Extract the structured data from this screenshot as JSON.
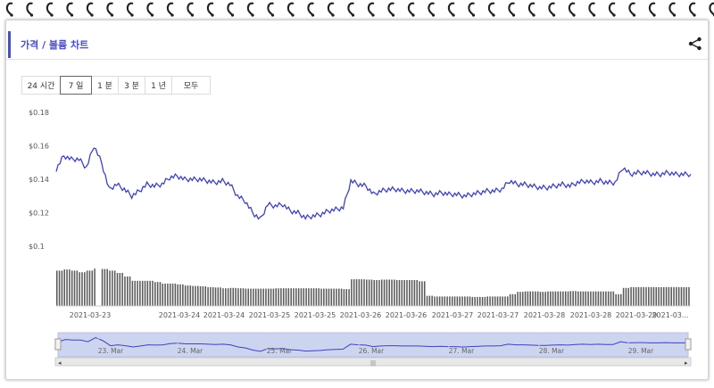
{
  "header": {
    "title": "가격 / 볼륨 차트",
    "share_icon": "share-icon"
  },
  "tabs": [
    {
      "label": "24 시간",
      "active": false
    },
    {
      "label": "7 일",
      "active": true
    },
    {
      "label": "1 분",
      "active": false
    },
    {
      "label": "3 분",
      "active": false
    },
    {
      "label": "1 년",
      "active": false
    },
    {
      "label": "모두",
      "active": false
    }
  ],
  "colors": {
    "accent": "#4a4ec2",
    "line": "#3f43b8",
    "volume": "#5a5a5a",
    "navigator_fill": "#cdd4f0"
  },
  "chart_data": {
    "type": "line",
    "series": [
      {
        "x": [
          "2021-03-22 18:00",
          "2021-03-22 20:00",
          "2021-03-22 22:00",
          "2021-03-23 00:00",
          "2021-03-23 02:00",
          "2021-03-23 04:00",
          "2021-03-23 06:00",
          "2021-03-23 08:00",
          "2021-03-23 10:00",
          "2021-03-23 12:00",
          "2021-03-23 14:00",
          "2021-03-23 16:00",
          "2021-03-23 18:00",
          "2021-03-23 20:00",
          "2021-03-23 22:00",
          "2021-03-24 00:00",
          "2021-03-24 02:00",
          "2021-03-24 04:00",
          "2021-03-24 06:00",
          "2021-03-24 08:00",
          "2021-03-24 10:00",
          "2021-03-24 12:00",
          "2021-03-24 14:00",
          "2021-03-24 16:00",
          "2021-03-24 18:00",
          "2021-03-24 20:00",
          "2021-03-24 22:00",
          "2021-03-25 00:00",
          "2021-03-25 02:00",
          "2021-03-25 04:00",
          "2021-03-25 06:00",
          "2021-03-25 08:00",
          "2021-03-25 10:00",
          "2021-03-25 12:00",
          "2021-03-25 14:00",
          "2021-03-25 16:00",
          "2021-03-25 18:00",
          "2021-03-25 20:00",
          "2021-03-25 22:00",
          "2021-03-26 00:00",
          "2021-03-26 02:00",
          "2021-03-26 04:00",
          "2021-03-26 06:00",
          "2021-03-26 08:00",
          "2021-03-26 10:00",
          "2021-03-26 12:00",
          "2021-03-26 14:00",
          "2021-03-26 16:00",
          "2021-03-26 18:00",
          "2021-03-26 20:00",
          "2021-03-26 22:00",
          "2021-03-27 00:00",
          "2021-03-27 02:00",
          "2021-03-27 04:00",
          "2021-03-27 06:00",
          "2021-03-27 08:00",
          "2021-03-27 10:00",
          "2021-03-27 12:00",
          "2021-03-27 14:00",
          "2021-03-27 16:00",
          "2021-03-27 18:00",
          "2021-03-27 20:00",
          "2021-03-27 22:00",
          "2021-03-28 00:00",
          "2021-03-28 02:00",
          "2021-03-28 04:00",
          "2021-03-28 06:00",
          "2021-03-28 08:00",
          "2021-03-28 10:00",
          "2021-03-28 12:00",
          "2021-03-28 14:00",
          "2021-03-28 16:00",
          "2021-03-28 18:00",
          "2021-03-28 20:00",
          "2021-03-28 22:00",
          "2021-03-29 00:00",
          "2021-03-29 02:00",
          "2021-03-29 04:00",
          "2021-03-29 06:00",
          "2021-03-29 08:00",
          "2021-03-29 10:00",
          "2021-03-29 12:00",
          "2021-03-29 14:00",
          "2021-03-29 16:00",
          "2021-03-29 18:00"
        ],
        "price": [
          0.146,
          0.154,
          0.152,
          0.152,
          0.147,
          0.16,
          0.15,
          0.134,
          0.137,
          0.134,
          0.13,
          0.133,
          0.137,
          0.136,
          0.137,
          0.141,
          0.142,
          0.14,
          0.14,
          0.14,
          0.139,
          0.138,
          0.139,
          0.137,
          0.13,
          0.127,
          0.12,
          0.116,
          0.125,
          0.124,
          0.125,
          0.121,
          0.12,
          0.117,
          0.118,
          0.119,
          0.121,
          0.122,
          0.123,
          0.139,
          0.137,
          0.136,
          0.131,
          0.133,
          0.134,
          0.134,
          0.133,
          0.133,
          0.133,
          0.132,
          0.131,
          0.132,
          0.131,
          0.131,
          0.13,
          0.131,
          0.132,
          0.133,
          0.133,
          0.134,
          0.139,
          0.137,
          0.137,
          0.136,
          0.135,
          0.135,
          0.136,
          0.137,
          0.136,
          0.138,
          0.139,
          0.138,
          0.139,
          0.138,
          0.138,
          0.147,
          0.143,
          0.144,
          0.144,
          0.143,
          0.143,
          0.144,
          0.143,
          0.143,
          0.143
        ],
        "volume": [
          0.9,
          0.93,
          0.9,
          0.86,
          0.9,
          0.95,
          0.94,
          0.9,
          0.84,
          0.75,
          0.64,
          0.64,
          0.64,
          0.61,
          0.57,
          0.57,
          0.55,
          0.52,
          0.51,
          0.5,
          0.48,
          0.47,
          0.45,
          0.46,
          0.45,
          0.44,
          0.44,
          0.44,
          0.44,
          0.45,
          0.45,
          0.45,
          0.45,
          0.45,
          0.45,
          0.44,
          0.44,
          0.44,
          0.43,
          0.68,
          0.68,
          0.67,
          0.66,
          0.67,
          0.67,
          0.66,
          0.66,
          0.66,
          0.63,
          0.26,
          0.24,
          0.24,
          0.24,
          0.24,
          0.24,
          0.23,
          0.23,
          0.24,
          0.24,
          0.24,
          0.3,
          0.36,
          0.37,
          0.37,
          0.36,
          0.37,
          0.37,
          0.37,
          0.38,
          0.37,
          0.37,
          0.37,
          0.37,
          0.37,
          0.3,
          0.46,
          0.48,
          0.48,
          0.48,
          0.48,
          0.48,
          0.48,
          0.48,
          0.48,
          0.48
        ]
      }
    ],
    "y_ticks": [
      "$0.18",
      "$0.16",
      "$0.14",
      "$0.12",
      "$0.1"
    ],
    "y_tick_values": [
      0.18,
      0.16,
      0.14,
      0.12,
      0.1
    ],
    "ylim": [
      0.1,
      0.18
    ],
    "x_tick_labels": [
      "2021-03-23",
      "2021-03-24",
      "2021-03-24",
      "2021-03-25",
      "2021-03-25",
      "2021-03-26",
      "2021-03-26",
      "2021-03-27",
      "2021-03-27",
      "2021-03-28",
      "2021-03-28",
      "2021-03-29",
      "2021-03..."
    ],
    "navigator_labels": [
      "23. Mar",
      "24. Mar",
      "25. Mar",
      "26. Mar",
      "27. Mar",
      "28. Mar",
      "29. Mar"
    ],
    "grid": false,
    "legend": "none"
  }
}
